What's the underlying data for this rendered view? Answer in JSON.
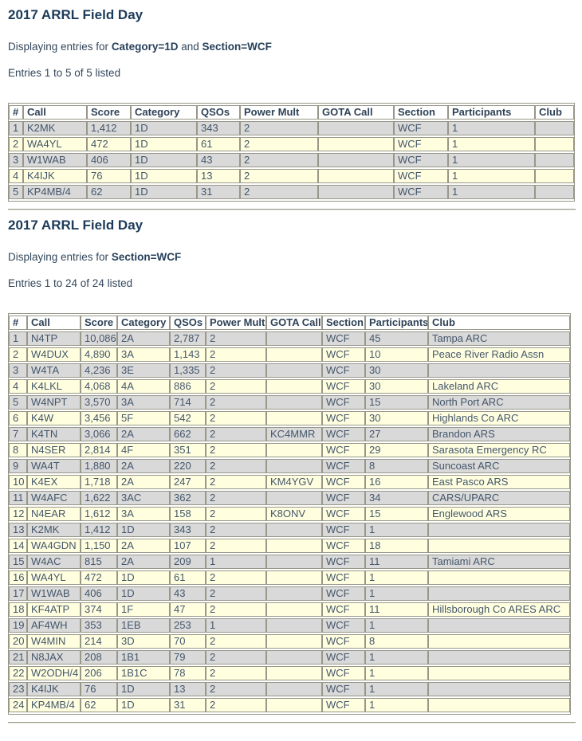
{
  "colors": {
    "heading_text": "#1c3b5a",
    "body_text": "#33475b",
    "table_border": "#97978a",
    "row_grey": "#d9d9d9",
    "row_yellow": "#ffffe0",
    "header_cell_bg": "#ffffff"
  },
  "sections": [
    {
      "title": "2017 ARRL Field Day",
      "filter_prefix": "Displaying entries for ",
      "filter_joiner": " and ",
      "filters": [
        "Category=1D",
        "Section=WCF"
      ],
      "entries_text": "Entries 1 to 5 of 5 listed",
      "columns": [
        "#",
        "Call",
        "Score",
        "Category",
        "QSOs",
        "Power Mult",
        "GOTA Call",
        "Section",
        "Participants",
        "Club"
      ],
      "rows": [
        [
          "1",
          "K2MK",
          "1,412",
          "1D",
          "343",
          "2",
          "",
          "WCF",
          "1",
          ""
        ],
        [
          "2",
          "WA4YL",
          "472",
          "1D",
          "61",
          "2",
          "",
          "WCF",
          "1",
          ""
        ],
        [
          "3",
          "W1WAB",
          "406",
          "1D",
          "43",
          "2",
          "",
          "WCF",
          "1",
          ""
        ],
        [
          "4",
          "K4IJK",
          "76",
          "1D",
          "13",
          "2",
          "",
          "WCF",
          "1",
          ""
        ],
        [
          "5",
          "KP4MB/4",
          "62",
          "1D",
          "31",
          "2",
          "",
          "WCF",
          "1",
          ""
        ]
      ]
    },
    {
      "title": "2017 ARRL Field Day",
      "filter_prefix": "Displaying entries for ",
      "filter_joiner": " and ",
      "filters": [
        "Section=WCF"
      ],
      "entries_text": "Entries 1 to 24 of 24 listed",
      "columns": [
        "#",
        "Call",
        "Score",
        "Category",
        "QSOs",
        "Power Mult",
        "GOTA Call",
        "Section",
        "Participants",
        "Club"
      ],
      "rows": [
        [
          "1",
          "N4TP",
          "10,086",
          "2A",
          "2,787",
          "2",
          "",
          "WCF",
          "45",
          "Tampa ARC"
        ],
        [
          "2",
          "W4DUX",
          "4,890",
          "3A",
          "1,143",
          "2",
          "",
          "WCF",
          "10",
          "Peace River Radio Assn"
        ],
        [
          "3",
          "W4TA",
          "4,236",
          "3E",
          "1,335",
          "2",
          "",
          "WCF",
          "30",
          ""
        ],
        [
          "4",
          "K4LKL",
          "4,068",
          "4A",
          "886",
          "2",
          "",
          "WCF",
          "30",
          "Lakeland ARC"
        ],
        [
          "5",
          "W4NPT",
          "3,570",
          "3A",
          "714",
          "2",
          "",
          "WCF",
          "15",
          "North Port ARC"
        ],
        [
          "6",
          "K4W",
          "3,456",
          "5F",
          "542",
          "2",
          "",
          "WCF",
          "30",
          "Highlands Co ARC"
        ],
        [
          "7",
          "K4TN",
          "3,066",
          "2A",
          "662",
          "2",
          "KC4MMR",
          "WCF",
          "27",
          "Brandon ARS"
        ],
        [
          "8",
          "N4SER",
          "2,814",
          "4F",
          "351",
          "2",
          "",
          "WCF",
          "29",
          "Sarasota Emergency RC"
        ],
        [
          "9",
          "WA4T",
          "1,880",
          "2A",
          "220",
          "2",
          "",
          "WCF",
          "8",
          "Suncoast ARC"
        ],
        [
          "10",
          "K4EX",
          "1,718",
          "2A",
          "247",
          "2",
          "KM4YGV",
          "WCF",
          "16",
          "East Pasco ARS"
        ],
        [
          "11",
          "W4AFC",
          "1,622",
          "3AC",
          "362",
          "2",
          "",
          "WCF",
          "34",
          "CARS/UPARC"
        ],
        [
          "12",
          "N4EAR",
          "1,612",
          "3A",
          "158",
          "2",
          "K8ONV",
          "WCF",
          "15",
          "Englewood ARS"
        ],
        [
          "13",
          "K2MK",
          "1,412",
          "1D",
          "343",
          "2",
          "",
          "WCF",
          "1",
          ""
        ],
        [
          "14",
          "WA4GDN",
          "1,150",
          "2A",
          "107",
          "2",
          "",
          "WCF",
          "18",
          ""
        ],
        [
          "15",
          "W4AC",
          "815",
          "2A",
          "209",
          "1",
          "",
          "WCF",
          "11",
          "Tamiami ARC"
        ],
        [
          "16",
          "WA4YL",
          "472",
          "1D",
          "61",
          "2",
          "",
          "WCF",
          "1",
          ""
        ],
        [
          "17",
          "W1WAB",
          "406",
          "1D",
          "43",
          "2",
          "",
          "WCF",
          "1",
          ""
        ],
        [
          "18",
          "KF4ATP",
          "374",
          "1F",
          "47",
          "2",
          "",
          "WCF",
          "11",
          "Hillsborough Co ARES ARC"
        ],
        [
          "19",
          "AF4WH",
          "353",
          "1EB",
          "253",
          "1",
          "",
          "WCF",
          "1",
          ""
        ],
        [
          "20",
          "W4MIN",
          "214",
          "3D",
          "70",
          "2",
          "",
          "WCF",
          "8",
          ""
        ],
        [
          "21",
          "N8JAX",
          "208",
          "1B1",
          "79",
          "2",
          "",
          "WCF",
          "1",
          ""
        ],
        [
          "22",
          "W2ODH/4",
          "206",
          "1B1C",
          "78",
          "2",
          "",
          "WCF",
          "1",
          ""
        ],
        [
          "23",
          "K4IJK",
          "76",
          "1D",
          "13",
          "2",
          "",
          "WCF",
          "1",
          ""
        ],
        [
          "24",
          "KP4MB/4",
          "62",
          "1D",
          "31",
          "2",
          "",
          "WCF",
          "1",
          ""
        ]
      ]
    }
  ]
}
